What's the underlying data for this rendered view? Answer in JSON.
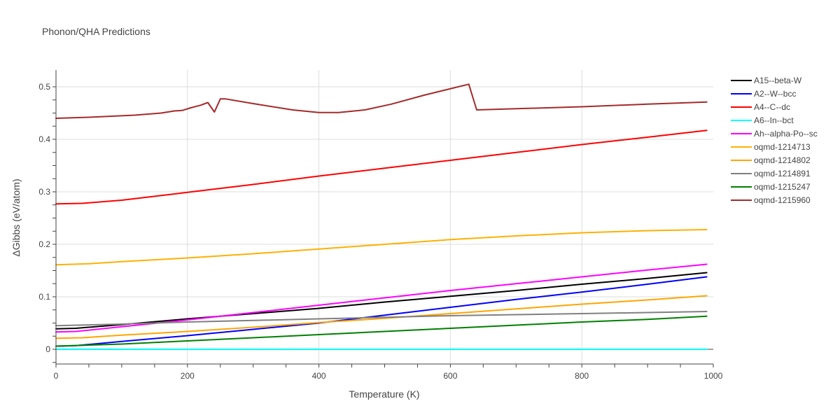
{
  "chart_data": {
    "type": "line",
    "title": "Phonon/QHA Predictions",
    "xlabel": "Temperature (K)",
    "ylabel": "ΔGibbs (eV/atom)",
    "xlim": [
      0,
      1000
    ],
    "ylim": [
      -0.028,
      0.532
    ],
    "xticks": [
      0,
      200,
      400,
      600,
      800,
      1000
    ],
    "xtick_labels": [
      "0",
      "200",
      "400",
      "600",
      "800",
      "1000"
    ],
    "yticks": [
      0,
      0.1,
      0.2,
      0.3,
      0.4,
      0.5
    ],
    "ytick_labels": [
      "0",
      "0.1",
      "0.2",
      "0.3",
      "0.4",
      "0.5"
    ],
    "grid": true,
    "legend_position": "right",
    "series": [
      {
        "name": "A15--beta-W",
        "color": "#000000",
        "points": [
          [
            0,
            0.039
          ],
          [
            30,
            0.04
          ],
          [
            100,
            0.047
          ],
          [
            200,
            0.058
          ],
          [
            300,
            0.068
          ],
          [
            400,
            0.078
          ],
          [
            500,
            0.09
          ],
          [
            600,
            0.101
          ],
          [
            700,
            0.112
          ],
          [
            800,
            0.124
          ],
          [
            900,
            0.135
          ],
          [
            990,
            0.146
          ]
        ]
      },
      {
        "name": "A2--W--bcc",
        "color": "#0000ff",
        "points": [
          [
            0,
            0.006
          ],
          [
            30,
            0.007
          ],
          [
            100,
            0.015
          ],
          [
            200,
            0.026
          ],
          [
            300,
            0.038
          ],
          [
            400,
            0.05
          ],
          [
            500,
            0.065
          ],
          [
            600,
            0.08
          ],
          [
            700,
            0.095
          ],
          [
            800,
            0.109
          ],
          [
            900,
            0.124
          ],
          [
            990,
            0.138
          ]
        ]
      },
      {
        "name": "A4--C--dc",
        "color": "#ff0000",
        "points": [
          [
            0,
            0.277
          ],
          [
            40,
            0.278
          ],
          [
            100,
            0.284
          ],
          [
            200,
            0.299
          ],
          [
            300,
            0.314
          ],
          [
            400,
            0.33
          ],
          [
            500,
            0.345
          ],
          [
            600,
            0.36
          ],
          [
            700,
            0.375
          ],
          [
            800,
            0.39
          ],
          [
            900,
            0.404
          ],
          [
            990,
            0.417
          ]
        ]
      },
      {
        "name": "A6--In--bct",
        "color": "#00ffff",
        "points": [
          [
            0,
            0.0
          ],
          [
            990,
            0.0
          ]
        ]
      },
      {
        "name": "Ah--alpha-Po--sc",
        "color": "#ff00ff",
        "points": [
          [
            0,
            0.033
          ],
          [
            30,
            0.034
          ],
          [
            100,
            0.043
          ],
          [
            200,
            0.056
          ],
          [
            300,
            0.07
          ],
          [
            400,
            0.084
          ],
          [
            500,
            0.098
          ],
          [
            600,
            0.112
          ],
          [
            700,
            0.125
          ],
          [
            800,
            0.138
          ],
          [
            900,
            0.151
          ],
          [
            990,
            0.162
          ]
        ]
      },
      {
        "name": "oqmd-1214713",
        "color": "#ffb000",
        "points": [
          [
            0,
            0.161
          ],
          [
            50,
            0.163
          ],
          [
            100,
            0.167
          ],
          [
            200,
            0.174
          ],
          [
            300,
            0.182
          ],
          [
            400,
            0.191
          ],
          [
            500,
            0.2
          ],
          [
            600,
            0.209
          ],
          [
            700,
            0.216
          ],
          [
            800,
            0.222
          ],
          [
            900,
            0.226
          ],
          [
            990,
            0.228
          ]
        ]
      },
      {
        "name": "oqmd-1214802",
        "color": "#ffa500",
        "points": [
          [
            0,
            0.021
          ],
          [
            40,
            0.022
          ],
          [
            100,
            0.027
          ],
          [
            200,
            0.034
          ],
          [
            300,
            0.042
          ],
          [
            400,
            0.051
          ],
          [
            500,
            0.059
          ],
          [
            600,
            0.068
          ],
          [
            700,
            0.077
          ],
          [
            800,
            0.086
          ],
          [
            900,
            0.094
          ],
          [
            990,
            0.102
          ]
        ]
      },
      {
        "name": "oqmd-1214891",
        "color": "#808080",
        "points": [
          [
            0,
            0.045
          ],
          [
            100,
            0.048
          ],
          [
            200,
            0.052
          ],
          [
            300,
            0.055
          ],
          [
            400,
            0.058
          ],
          [
            500,
            0.061
          ],
          [
            600,
            0.064
          ],
          [
            700,
            0.066
          ],
          [
            800,
            0.068
          ],
          [
            900,
            0.07
          ],
          [
            990,
            0.072
          ]
        ]
      },
      {
        "name": "oqmd-1215247",
        "color": "#008000",
        "points": [
          [
            0,
            0.006
          ],
          [
            100,
            0.01
          ],
          [
            200,
            0.016
          ],
          [
            300,
            0.022
          ],
          [
            400,
            0.028
          ],
          [
            500,
            0.034
          ],
          [
            600,
            0.04
          ],
          [
            700,
            0.046
          ],
          [
            800,
            0.052
          ],
          [
            900,
            0.057
          ],
          [
            990,
            0.063
          ]
        ]
      },
      {
        "name": "oqmd-1215960",
        "color": "#a52a2a",
        "points": [
          [
            0,
            0.44
          ],
          [
            50,
            0.442
          ],
          [
            120,
            0.446
          ],
          [
            160,
            0.45
          ],
          [
            180,
            0.454
          ],
          [
            192,
            0.455
          ],
          [
            205,
            0.46
          ],
          [
            220,
            0.465
          ],
          [
            231,
            0.47
          ],
          [
            241,
            0.452
          ],
          [
            250,
            0.477
          ],
          [
            258,
            0.477
          ],
          [
            300,
            0.468
          ],
          [
            360,
            0.456
          ],
          [
            400,
            0.451
          ],
          [
            430,
            0.451
          ],
          [
            470,
            0.456
          ],
          [
            510,
            0.467
          ],
          [
            560,
            0.484
          ],
          [
            628,
            0.505
          ],
          [
            640,
            0.456
          ],
          [
            800,
            0.462
          ],
          [
            900,
            0.467
          ],
          [
            990,
            0.471
          ]
        ]
      }
    ]
  }
}
